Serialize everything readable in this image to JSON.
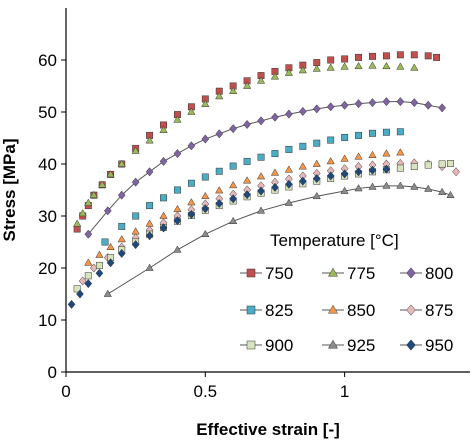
{
  "chart_data": {
    "type": "scatter",
    "xlabel": "Effective strain [-]",
    "ylabel": "Stress [MPa]",
    "xlim": [
      0,
      1.45
    ],
    "ylim": [
      0,
      70
    ],
    "xticks": [
      "0",
      "0.5",
      "1"
    ],
    "yticks": [
      "0",
      "10",
      "20",
      "30",
      "40",
      "50",
      "60"
    ],
    "grid": false,
    "legend_position": "bottom-right",
    "legend_title": "Temperature [°C]",
    "series": [
      {
        "name": "750",
        "color": "#c0504d",
        "marker": "square",
        "connected": false,
        "x": [
          0.04,
          0.06,
          0.08,
          0.1,
          0.13,
          0.16,
          0.2,
          0.25,
          0.3,
          0.35,
          0.4,
          0.45,
          0.5,
          0.55,
          0.6,
          0.65,
          0.7,
          0.75,
          0.8,
          0.85,
          0.9,
          0.95,
          1.0,
          1.05,
          1.1,
          1.15,
          1.2,
          1.25,
          1.3,
          1.33
        ],
        "y": [
          27.5,
          30,
          32,
          34,
          36,
          38,
          40,
          43,
          45.5,
          47.5,
          49.5,
          51,
          52.5,
          54,
          55,
          56,
          57,
          57.8,
          58.5,
          59,
          59.5,
          60,
          60.2,
          60.5,
          60.7,
          60.8,
          61,
          61,
          60.8,
          60.5
        ]
      },
      {
        "name": "775",
        "color": "#9bbb59",
        "marker": "triangle",
        "connected": false,
        "x": [
          0.04,
          0.06,
          0.08,
          0.1,
          0.13,
          0.16,
          0.2,
          0.25,
          0.3,
          0.35,
          0.4,
          0.45,
          0.5,
          0.55,
          0.6,
          0.65,
          0.7,
          0.75,
          0.8,
          0.85,
          0.9,
          0.95,
          1.0,
          1.05,
          1.1,
          1.15,
          1.2,
          1.25
        ],
        "y": [
          28.5,
          30.5,
          32.5,
          34,
          36,
          38,
          40,
          42.5,
          44.5,
          46.5,
          48.5,
          50,
          51.5,
          53,
          54,
          55,
          56,
          56.8,
          57.5,
          58,
          58.3,
          58.5,
          58.7,
          58.8,
          58.9,
          58.8,
          58.7,
          58.5
        ]
      },
      {
        "name": "800",
        "color": "#8064a2",
        "marker": "diamond",
        "connected": true,
        "x": [
          0.08,
          0.15,
          0.2,
          0.25,
          0.3,
          0.35,
          0.4,
          0.45,
          0.5,
          0.55,
          0.6,
          0.65,
          0.7,
          0.75,
          0.8,
          0.85,
          0.9,
          0.95,
          1.0,
          1.05,
          1.1,
          1.15,
          1.2,
          1.25,
          1.3,
          1.35
        ],
        "y": [
          26.5,
          31,
          34,
          36.5,
          38.5,
          40.5,
          42,
          43.5,
          44.8,
          45.8,
          46.8,
          47.6,
          48.3,
          49,
          49.6,
          50.1,
          50.6,
          51,
          51.3,
          51.6,
          51.8,
          52,
          52,
          51.8,
          51.3,
          50.8
        ]
      },
      {
        "name": "825",
        "color": "#4bacc6",
        "marker": "square",
        "connected": false,
        "x": [
          0.14,
          0.2,
          0.25,
          0.3,
          0.35,
          0.4,
          0.45,
          0.5,
          0.55,
          0.6,
          0.65,
          0.7,
          0.75,
          0.8,
          0.85,
          0.9,
          0.95,
          1.0,
          1.05,
          1.1,
          1.15,
          1.2
        ],
        "y": [
          25,
          28,
          30,
          32,
          33.5,
          35,
          36.3,
          37.5,
          38.6,
          39.6,
          40.5,
          41.3,
          42,
          42.8,
          43.4,
          44,
          44.6,
          45.1,
          45.5,
          45.9,
          46.1,
          46.2
        ]
      },
      {
        "name": "850",
        "color": "#f79646",
        "marker": "triangle",
        "connected": false,
        "x": [
          0.08,
          0.12,
          0.16,
          0.2,
          0.25,
          0.3,
          0.35,
          0.4,
          0.45,
          0.5,
          0.55,
          0.6,
          0.65,
          0.7,
          0.75,
          0.8,
          0.85,
          0.9,
          0.95,
          1.0,
          1.05,
          1.1,
          1.15,
          1.2
        ],
        "y": [
          21,
          22.5,
          24,
          25.5,
          27,
          28.5,
          30,
          31.3,
          32.6,
          33.8,
          34.9,
          35.9,
          36.8,
          37.6,
          38.3,
          38.9,
          39.5,
          40,
          40.5,
          41,
          41.4,
          41.7,
          42,
          42.2
        ]
      },
      {
        "name": "875",
        "color": "#e6b9b8",
        "marker": "diamond",
        "connected": false,
        "x": [
          0.06,
          0.1,
          0.15,
          0.2,
          0.25,
          0.3,
          0.35,
          0.4,
          0.45,
          0.5,
          0.55,
          0.6,
          0.65,
          0.7,
          0.75,
          0.8,
          0.85,
          0.9,
          0.95,
          1.0,
          1.05,
          1.1,
          1.15,
          1.2,
          1.25,
          1.3,
          1.35,
          1.4
        ],
        "y": [
          17.5,
          20,
          22,
          24,
          25.8,
          27.3,
          28.7,
          30,
          31.2,
          32.3,
          33.3,
          34.2,
          35,
          35.8,
          36.5,
          37.1,
          37.7,
          38.2,
          38.7,
          39.1,
          39.5,
          39.8,
          40,
          40.1,
          40.2,
          40,
          39.5,
          38.5
        ]
      },
      {
        "name": "900",
        "color": "#d7e4bd",
        "marker": "square",
        "connected": false,
        "x": [
          0.04,
          0.08,
          0.12,
          0.16,
          0.2,
          0.25,
          0.3,
          0.35,
          0.4,
          0.45,
          0.5,
          0.55,
          0.6,
          0.65,
          0.7,
          0.75,
          0.8,
          0.85,
          0.9,
          0.95,
          1.0,
          1.05,
          1.1,
          1.15,
          1.2,
          1.25,
          1.3,
          1.35,
          1.38
        ],
        "y": [
          16,
          18.5,
          20.5,
          22,
          23.5,
          25,
          26.5,
          27.8,
          29,
          30.1,
          31.1,
          32,
          32.9,
          33.7,
          34.4,
          35,
          35.6,
          36.2,
          36.7,
          37.2,
          37.7,
          38.1,
          38.5,
          38.9,
          39.2,
          39.5,
          39.8,
          40,
          40.1
        ]
      },
      {
        "name": "925",
        "color": "#8c8c8c",
        "marker": "triangle",
        "connected": true,
        "x": [
          0.15,
          0.3,
          0.4,
          0.5,
          0.6,
          0.7,
          0.8,
          0.9,
          1.0,
          1.05,
          1.1,
          1.15,
          1.2,
          1.25,
          1.3,
          1.35,
          1.38
        ],
        "y": [
          15,
          20,
          23.5,
          26.5,
          29,
          31,
          32.5,
          33.8,
          34.8,
          35.3,
          35.6,
          35.8,
          35.8,
          35.6,
          35.2,
          34.6,
          34
        ]
      },
      {
        "name": "950",
        "color": "#1f497d",
        "marker": "diamond",
        "connected": false,
        "x": [
          0.02,
          0.05,
          0.08,
          0.12,
          0.16,
          0.2,
          0.25,
          0.3,
          0.35,
          0.4,
          0.45,
          0.5,
          0.55,
          0.6,
          0.65,
          0.7,
          0.75,
          0.8,
          0.85,
          0.9,
          0.95,
          1.0,
          1.05,
          1.1,
          1.15
        ],
        "y": [
          13,
          15,
          17,
          19,
          21,
          22.8,
          24.5,
          26.2,
          27.7,
          29.1,
          30.3,
          31.4,
          32.4,
          33.3,
          34.1,
          34.8,
          35.5,
          36.1,
          36.7,
          37.2,
          37.7,
          38.1,
          38.5,
          38.8,
          39
        ]
      }
    ]
  }
}
